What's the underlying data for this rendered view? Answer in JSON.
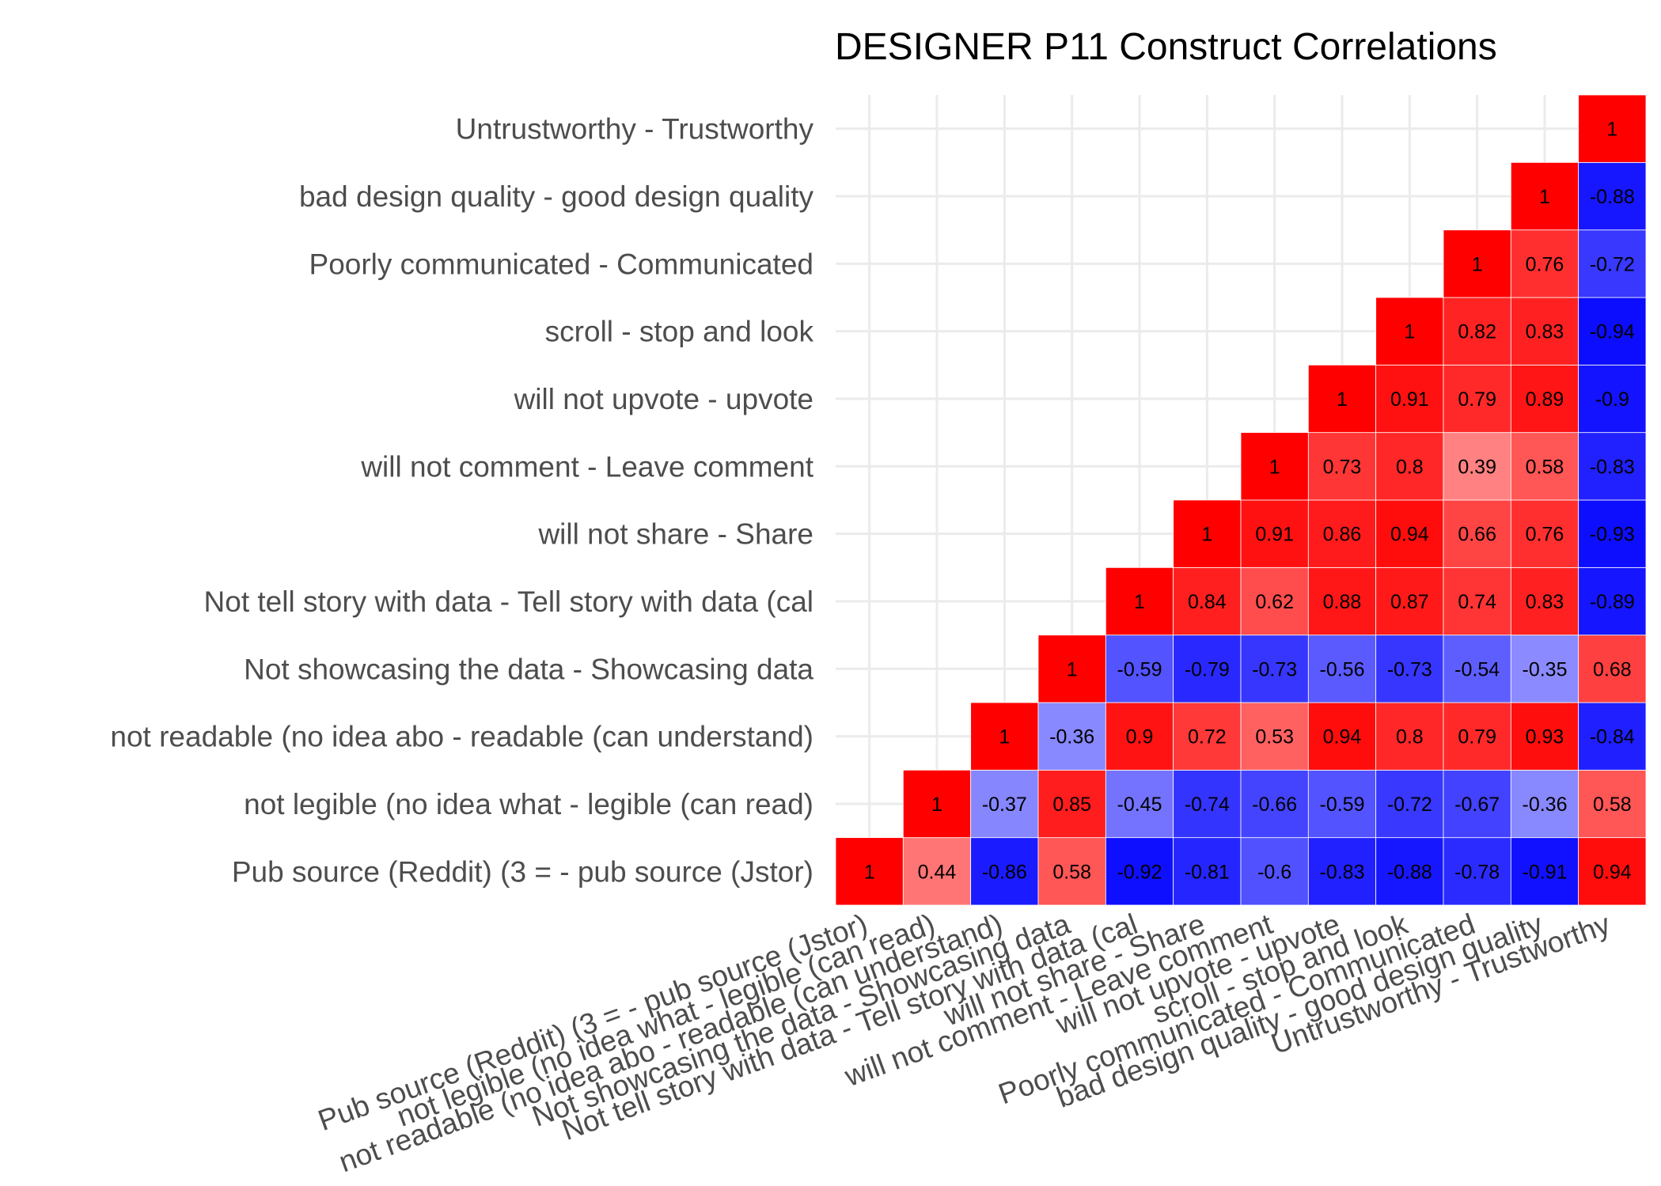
{
  "chart_data": {
    "type": "heatmap",
    "title": "DESIGNER P11 Construct Correlations",
    "xlabel": "",
    "ylabel": "",
    "variables": [
      "Pub source (Reddit) (3 =  - pub source (Jstor)",
      "not legible (no idea what - legible (can read)",
      "not readable (no idea abo - readable (can understand)",
      "Not showcasing the data - Showcasing data",
      "Not tell story with data - Tell story with data (cal",
      "will not share - Share",
      "will not comment - Leave comment",
      "will not upvote - upvote",
      "scroll - stop and look",
      "Poorly communicated - Communicated",
      "bad design quality - good design quality",
      "Untrustworthy - Trustworthy"
    ],
    "layout": "lower-triangle",
    "value_range": [
      -1,
      1
    ],
    "color_scale": {
      "low": "#0000ff",
      "mid": "#ffffff",
      "high": "#ff0000"
    },
    "grid": true,
    "cells": [
      {
        "row": 0,
        "col": 0,
        "value": 1,
        "label": "1"
      },
      {
        "row": 0,
        "col": 1,
        "value": 0.44,
        "label": "0.44"
      },
      {
        "row": 0,
        "col": 2,
        "value": -0.86,
        "label": "-0.86"
      },
      {
        "row": 0,
        "col": 3,
        "value": 0.58,
        "label": "0.58"
      },
      {
        "row": 0,
        "col": 4,
        "value": -0.92,
        "label": "-0.92"
      },
      {
        "row": 0,
        "col": 5,
        "value": -0.81,
        "label": "-0.81"
      },
      {
        "row": 0,
        "col": 6,
        "value": -0.6,
        "label": "-0.6"
      },
      {
        "row": 0,
        "col": 7,
        "value": -0.83,
        "label": "-0.83"
      },
      {
        "row": 0,
        "col": 8,
        "value": -0.88,
        "label": "-0.88"
      },
      {
        "row": 0,
        "col": 9,
        "value": -0.78,
        "label": "-0.78"
      },
      {
        "row": 0,
        "col": 10,
        "value": -0.91,
        "label": "-0.91"
      },
      {
        "row": 0,
        "col": 11,
        "value": 0.94,
        "label": "0.94"
      },
      {
        "row": 1,
        "col": 1,
        "value": 1,
        "label": "1"
      },
      {
        "row": 1,
        "col": 2,
        "value": -0.37,
        "label": "-0.37"
      },
      {
        "row": 1,
        "col": 3,
        "value": 0.85,
        "label": "0.85"
      },
      {
        "row": 1,
        "col": 4,
        "value": -0.45,
        "label": "-0.45"
      },
      {
        "row": 1,
        "col": 5,
        "value": -0.74,
        "label": "-0.74"
      },
      {
        "row": 1,
        "col": 6,
        "value": -0.66,
        "label": "-0.66"
      },
      {
        "row": 1,
        "col": 7,
        "value": -0.59,
        "label": "-0.59"
      },
      {
        "row": 1,
        "col": 8,
        "value": -0.72,
        "label": "-0.72"
      },
      {
        "row": 1,
        "col": 9,
        "value": -0.67,
        "label": "-0.67"
      },
      {
        "row": 1,
        "col": 10,
        "value": -0.36,
        "label": "-0.36"
      },
      {
        "row": 1,
        "col": 11,
        "value": 0.58,
        "label": "0.58"
      },
      {
        "row": 2,
        "col": 2,
        "value": 1,
        "label": "1"
      },
      {
        "row": 2,
        "col": 3,
        "value": -0.36,
        "label": "-0.36"
      },
      {
        "row": 2,
        "col": 4,
        "value": 0.9,
        "label": "0.9"
      },
      {
        "row": 2,
        "col": 5,
        "value": 0.72,
        "label": "0.72"
      },
      {
        "row": 2,
        "col": 6,
        "value": 0.53,
        "label": "0.53"
      },
      {
        "row": 2,
        "col": 7,
        "value": 0.94,
        "label": "0.94"
      },
      {
        "row": 2,
        "col": 8,
        "value": 0.8,
        "label": "0.8"
      },
      {
        "row": 2,
        "col": 9,
        "value": 0.79,
        "label": "0.79"
      },
      {
        "row": 2,
        "col": 10,
        "value": 0.93,
        "label": "0.93"
      },
      {
        "row": 2,
        "col": 11,
        "value": -0.84,
        "label": "-0.84"
      },
      {
        "row": 3,
        "col": 3,
        "value": 1,
        "label": "1"
      },
      {
        "row": 3,
        "col": 4,
        "value": -0.59,
        "label": "-0.59"
      },
      {
        "row": 3,
        "col": 5,
        "value": -0.79,
        "label": "-0.79"
      },
      {
        "row": 3,
        "col": 6,
        "value": -0.73,
        "label": "-0.73"
      },
      {
        "row": 3,
        "col": 7,
        "value": -0.56,
        "label": "-0.56"
      },
      {
        "row": 3,
        "col": 8,
        "value": -0.73,
        "label": "-0.73"
      },
      {
        "row": 3,
        "col": 9,
        "value": -0.54,
        "label": "-0.54"
      },
      {
        "row": 3,
        "col": 10,
        "value": -0.35,
        "label": "-0.35"
      },
      {
        "row": 3,
        "col": 11,
        "value": 0.68,
        "label": "0.68"
      },
      {
        "row": 4,
        "col": 4,
        "value": 1,
        "label": "1"
      },
      {
        "row": 4,
        "col": 5,
        "value": 0.84,
        "label": "0.84"
      },
      {
        "row": 4,
        "col": 6,
        "value": 0.62,
        "label": "0.62"
      },
      {
        "row": 4,
        "col": 7,
        "value": 0.88,
        "label": "0.88"
      },
      {
        "row": 4,
        "col": 8,
        "value": 0.87,
        "label": "0.87"
      },
      {
        "row": 4,
        "col": 9,
        "value": 0.74,
        "label": "0.74"
      },
      {
        "row": 4,
        "col": 10,
        "value": 0.83,
        "label": "0.83"
      },
      {
        "row": 4,
        "col": 11,
        "value": -0.89,
        "label": "-0.89"
      },
      {
        "row": 5,
        "col": 5,
        "value": 1,
        "label": "1"
      },
      {
        "row": 5,
        "col": 6,
        "value": 0.91,
        "label": "0.91"
      },
      {
        "row": 5,
        "col": 7,
        "value": 0.86,
        "label": "0.86"
      },
      {
        "row": 5,
        "col": 8,
        "value": 0.94,
        "label": "0.94"
      },
      {
        "row": 5,
        "col": 9,
        "value": 0.66,
        "label": "0.66"
      },
      {
        "row": 5,
        "col": 10,
        "value": 0.76,
        "label": "0.76"
      },
      {
        "row": 5,
        "col": 11,
        "value": -0.93,
        "label": "-0.93"
      },
      {
        "row": 6,
        "col": 6,
        "value": 1,
        "label": "1"
      },
      {
        "row": 6,
        "col": 7,
        "value": 0.73,
        "label": "0.73"
      },
      {
        "row": 6,
        "col": 8,
        "value": 0.8,
        "label": "0.8"
      },
      {
        "row": 6,
        "col": 9,
        "value": 0.39,
        "label": "0.39"
      },
      {
        "row": 6,
        "col": 10,
        "value": 0.58,
        "label": "0.58"
      },
      {
        "row": 6,
        "col": 11,
        "value": -0.83,
        "label": "-0.83"
      },
      {
        "row": 7,
        "col": 7,
        "value": 1,
        "label": "1"
      },
      {
        "row": 7,
        "col": 8,
        "value": 0.91,
        "label": "0.91"
      },
      {
        "row": 7,
        "col": 9,
        "value": 0.79,
        "label": "0.79"
      },
      {
        "row": 7,
        "col": 10,
        "value": 0.89,
        "label": "0.89"
      },
      {
        "row": 7,
        "col": 11,
        "value": -0.9,
        "label": "-0.9"
      },
      {
        "row": 8,
        "col": 8,
        "value": 1,
        "label": "1"
      },
      {
        "row": 8,
        "col": 9,
        "value": 0.82,
        "label": "0.82"
      },
      {
        "row": 8,
        "col": 10,
        "value": 0.83,
        "label": "0.83"
      },
      {
        "row": 8,
        "col": 11,
        "value": -0.94,
        "label": "-0.94"
      },
      {
        "row": 9,
        "col": 9,
        "value": 1,
        "label": "1"
      },
      {
        "row": 9,
        "col": 10,
        "value": 0.76,
        "label": "0.76"
      },
      {
        "row": 9,
        "col": 11,
        "value": -0.72,
        "label": "-0.72"
      },
      {
        "row": 10,
        "col": 10,
        "value": 1,
        "label": "1"
      },
      {
        "row": 10,
        "col": 11,
        "value": -0.88,
        "label": "-0.88"
      },
      {
        "row": 11,
        "col": 11,
        "value": 1,
        "label": "1"
      }
    ]
  }
}
